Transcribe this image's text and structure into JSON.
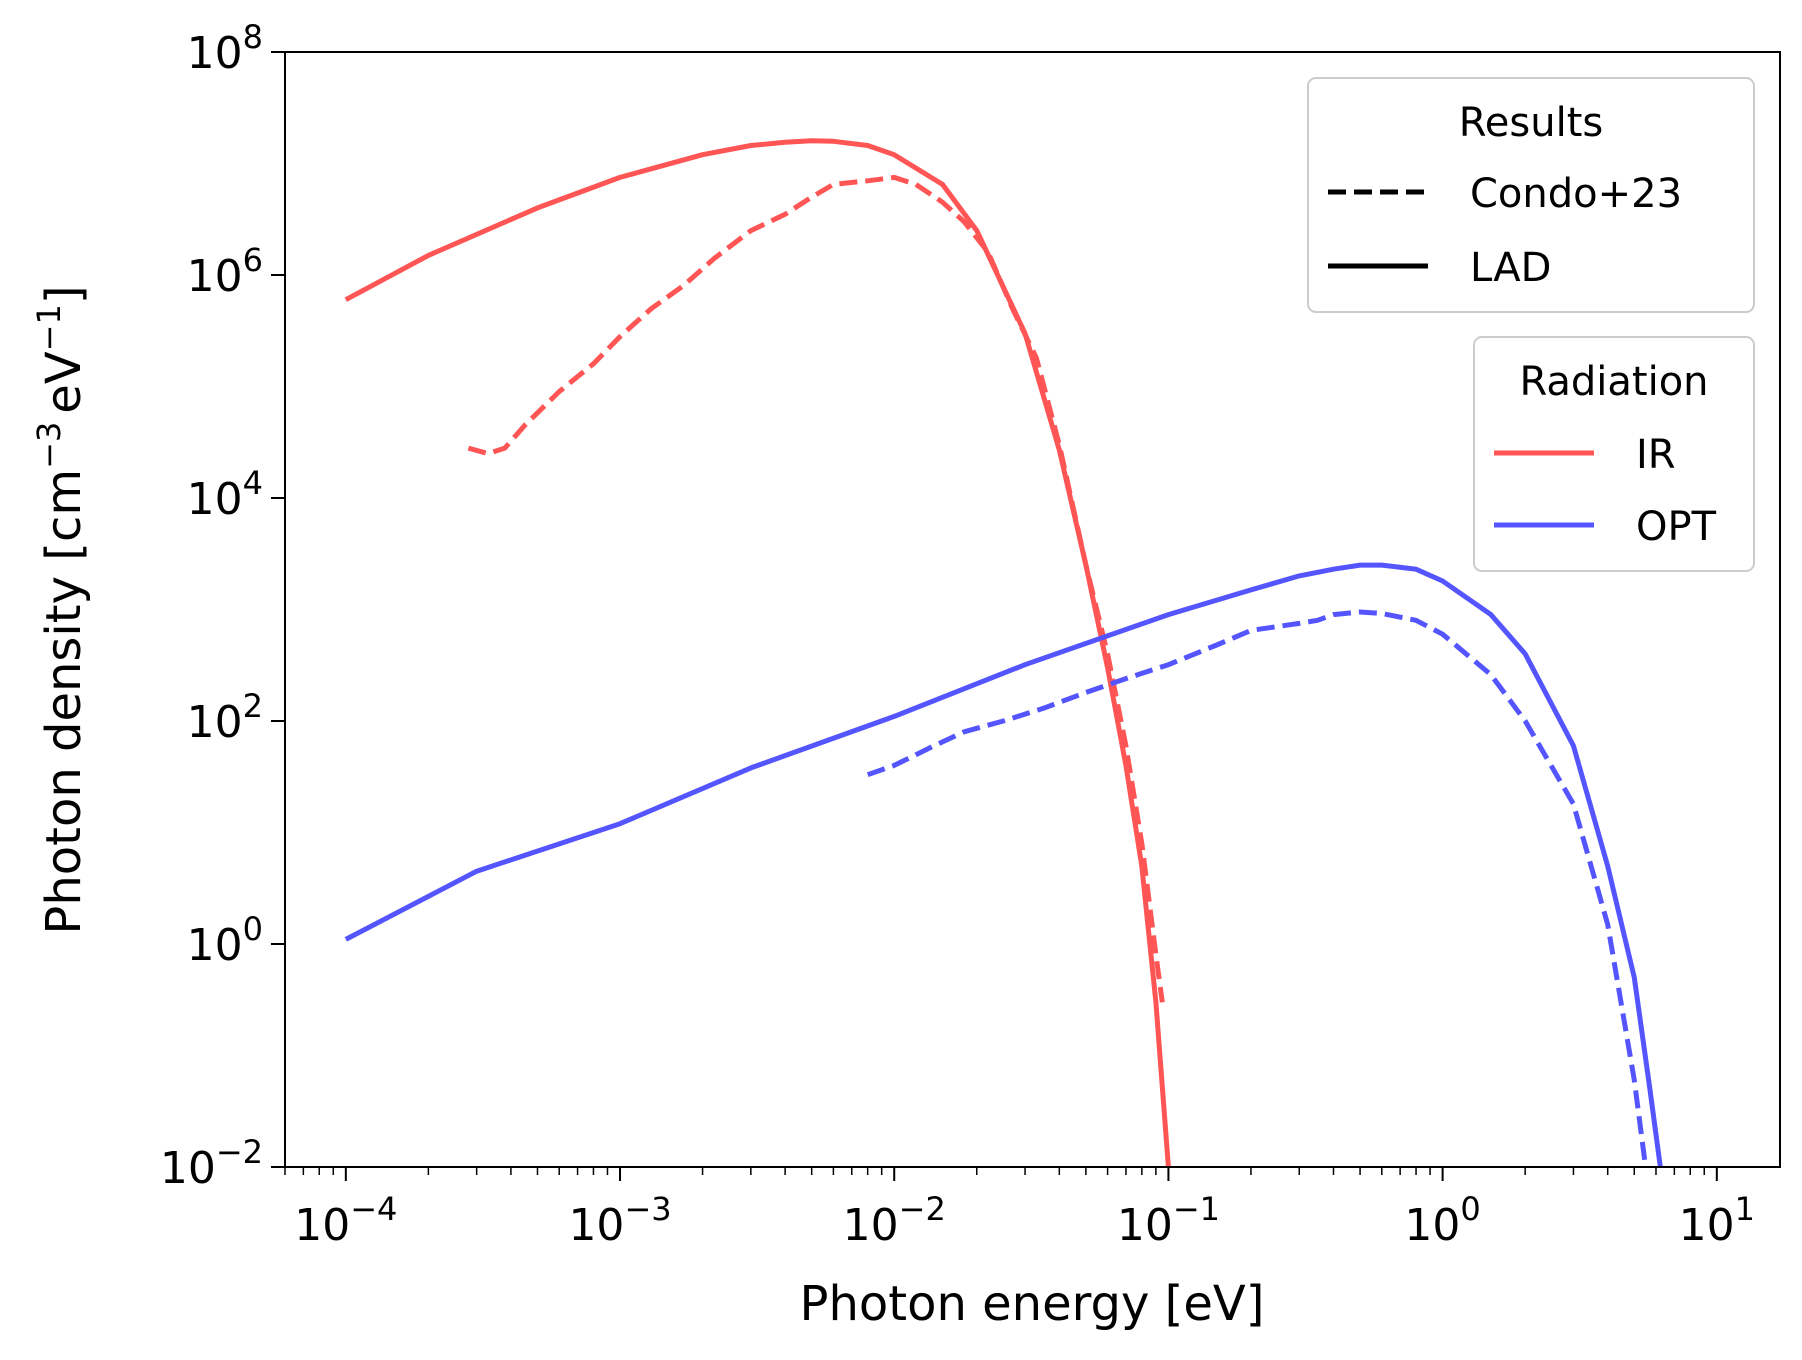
{
  "chart_data": {
    "type": "line",
    "title": "",
    "xlabel": "Photon energy [eV]",
    "ylabel": "Photon density [cm$^{-3}$eV$^{-1}$]",
    "ylabel_parts": {
      "before": "Photon density [cm",
      "exp1": "−3",
      "mid": "eV",
      "exp2": "−1",
      "after": "]"
    },
    "xscale": "log",
    "yscale": "log",
    "xlim": [
      6e-05,
      17
    ],
    "ylim": [
      0.01,
      100000000
    ],
    "xticks": [
      {
        "base": "10",
        "exp": "−4"
      },
      {
        "base": "10",
        "exp": "−3"
      },
      {
        "base": "10",
        "exp": "−2"
      },
      {
        "base": "10",
        "exp": "−1"
      },
      {
        "base": "10",
        "exp": "0"
      },
      {
        "base": "10",
        "exp": "1"
      }
    ],
    "yticks": [
      {
        "base": "10",
        "exp": "−2"
      },
      {
        "base": "10",
        "exp": "0"
      },
      {
        "base": "10",
        "exp": "2"
      },
      {
        "base": "10",
        "exp": "4"
      },
      {
        "base": "10",
        "exp": "6"
      },
      {
        "base": "10",
        "exp": "8"
      }
    ],
    "grid": false,
    "legends": [
      {
        "title": "Results",
        "placement": "top-right",
        "entries": [
          {
            "label": "Condo+23",
            "color": "#000000",
            "style": "dashed"
          },
          {
            "label": "LAD",
            "color": "#000000",
            "style": "solid"
          }
        ]
      },
      {
        "title": "Radiation",
        "placement": "upper-right",
        "entries": [
          {
            "label": "IR",
            "color": "#ff5555",
            "style": "solid"
          },
          {
            "label": "OPT",
            "color": "#5555ff",
            "style": "solid"
          }
        ]
      }
    ],
    "series": [
      {
        "name": "IR",
        "model": "LAD",
        "color": "#ff5555",
        "style": "solid",
        "x": [
          0.0001,
          0.0002,
          0.0005,
          0.001,
          0.002,
          0.003,
          0.004,
          0.005,
          0.006,
          0.008,
          0.01,
          0.015,
          0.02,
          0.03,
          0.04,
          0.05,
          0.06,
          0.07,
          0.08,
          0.09,
          0.1
        ],
        "y": [
          600000,
          1500000,
          4000000,
          7500000,
          12000000,
          14500000,
          15500000,
          16000000,
          15800000,
          14500000,
          12000000,
          6500000,
          2500000,
          300000,
          27000,
          2500,
          300,
          40,
          5,
          0.3,
          0.01
        ]
      },
      {
        "name": "IR",
        "model": "Condo+23",
        "color": "#ff5555",
        "style": "dashed",
        "x": [
          0.00028,
          0.00033,
          0.00038,
          0.00045,
          0.0006,
          0.0008,
          0.001,
          0.0013,
          0.0017,
          0.0022,
          0.003,
          0.004,
          0.005,
          0.006,
          0.008,
          0.01,
          0.012,
          0.015,
          0.018,
          0.022,
          0.027,
          0.033,
          0.04,
          0.05,
          0.06,
          0.07,
          0.08,
          0.09,
          0.095
        ],
        "y": [
          28000,
          25000,
          28000,
          45000,
          90000,
          160000,
          280000,
          500000,
          800000,
          1400000,
          2500000,
          3500000,
          5000000,
          6500000,
          7000000,
          7500000,
          6500000,
          4500000,
          3000000,
          1600000,
          500000,
          180000,
          30000,
          2500,
          400,
          60,
          8,
          0.8,
          0.3
        ]
      },
      {
        "name": "OPT",
        "model": "LAD",
        "color": "#5555ff",
        "style": "solid",
        "x": [
          0.0001,
          0.0003,
          0.001,
          0.003,
          0.01,
          0.03,
          0.1,
          0.2,
          0.3,
          0.4,
          0.5,
          0.6,
          0.8,
          1,
          1.5,
          2,
          3,
          4,
          5,
          5.7,
          6.3
        ],
        "y": [
          1.1,
          4.5,
          12,
          38,
          110,
          320,
          900,
          1500,
          2000,
          2300,
          2500,
          2500,
          2300,
          1800,
          900,
          400,
          60,
          5,
          0.5,
          0.05,
          0.008
        ]
      },
      {
        "name": "OPT",
        "model": "Condo+23",
        "color": "#5555ff",
        "style": "dashed",
        "x": [
          0.008,
          0.01,
          0.014,
          0.018,
          0.025,
          0.035,
          0.05,
          0.07,
          0.1,
          0.15,
          0.2,
          0.3,
          0.35,
          0.4,
          0.5,
          0.6,
          0.8,
          1,
          1.5,
          2,
          3,
          4,
          5,
          5.5
        ],
        "y": [
          33,
          40,
          60,
          80,
          100,
          130,
          180,
          240,
          320,
          480,
          650,
          750,
          800,
          900,
          950,
          920,
          800,
          600,
          260,
          100,
          18,
          1.5,
          0.06,
          0.01
        ]
      }
    ]
  }
}
